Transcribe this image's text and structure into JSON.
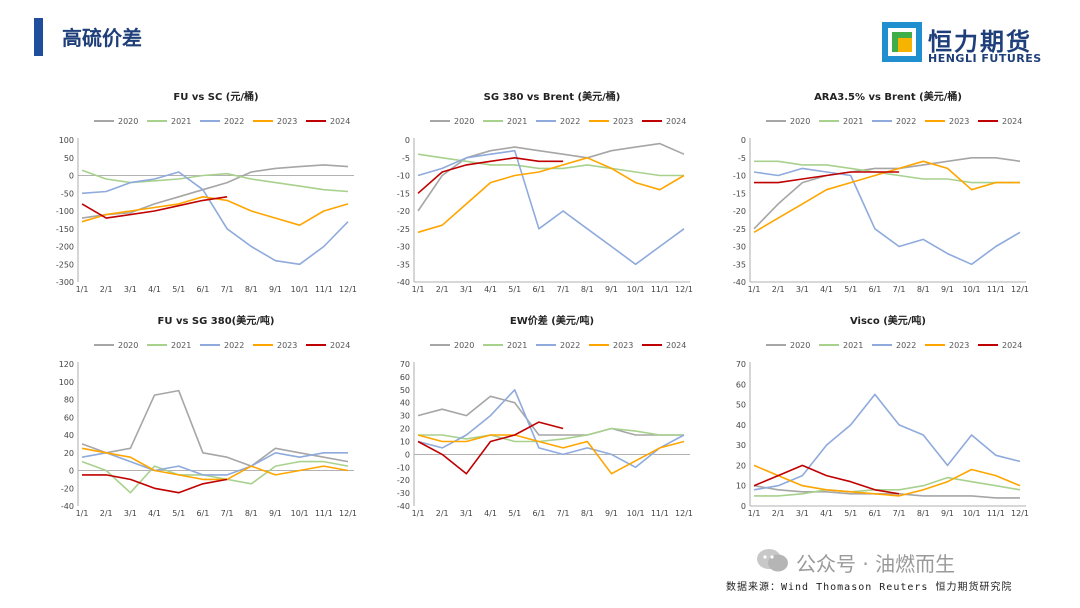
{
  "page": {
    "title": "高硫价差",
    "logo_cn": "恒力期货",
    "logo_en": "HENGLI FUTURES",
    "watermark": "公众号 · 油燃而生",
    "source": "数据来源：Wind Thomason Reuters 恒力期货研究院"
  },
  "colors": {
    "2020": "#a6a6a6",
    "2021": "#a9d18e",
    "2022": "#8faadc",
    "2023": "#ffa500",
    "2024": "#c00000",
    "accent": "#1f4e9c"
  },
  "chart_data": [
    {
      "type": "line",
      "title": "FU vs SC (元/桶)",
      "ylim": [
        -300,
        100
      ],
      "ystep": 50,
      "x": [
        "1/1",
        "2/1",
        "3/1",
        "4/1",
        "5/1",
        "6/1",
        "7/1",
        "8/1",
        "9/1",
        "10/1",
        "11/1",
        "12/1"
      ],
      "series": [
        {
          "name": "2020",
          "values": [
            -120,
            -110,
            -105,
            -80,
            -60,
            -40,
            -20,
            10,
            20,
            25,
            30,
            25
          ]
        },
        {
          "name": "2021",
          "values": [
            15,
            -10,
            -20,
            -15,
            -10,
            0,
            5,
            -10,
            -20,
            -30,
            -40,
            -45
          ]
        },
        {
          "name": "2022",
          "values": [
            -50,
            -45,
            -20,
            -10,
            10,
            -40,
            -150,
            -200,
            -240,
            -250,
            -200,
            -130
          ]
        },
        {
          "name": "2023",
          "values": [
            -130,
            -110,
            -100,
            -90,
            -80,
            -60,
            -70,
            -100,
            -120,
            -140,
            -100,
            -80
          ]
        },
        {
          "name": "2024",
          "values": [
            -80,
            -120,
            -110,
            -100,
            -85,
            -70,
            -60,
            null,
            null,
            null,
            null,
            null
          ]
        }
      ]
    },
    {
      "type": "line",
      "title": "SG 380 vs Brent (美元/桶)",
      "ylim": [
        -40,
        0
      ],
      "ystep": 5,
      "x": [
        "1/1",
        "2/1",
        "3/1",
        "4/1",
        "5/1",
        "6/1",
        "7/1",
        "8/1",
        "9/1",
        "10/1",
        "11/1",
        "12/1"
      ],
      "series": [
        {
          "name": "2020",
          "values": [
            -20,
            -10,
            -5,
            -3,
            -2,
            -3,
            -4,
            -5,
            -3,
            -2,
            -1,
            -4
          ]
        },
        {
          "name": "2021",
          "values": [
            -4,
            -5,
            -6,
            -7,
            -7,
            -8,
            -8,
            -7,
            -8,
            -9,
            -10,
            -10
          ]
        },
        {
          "name": "2022",
          "values": [
            -10,
            -8,
            -5,
            -4,
            -3,
            -25,
            -20,
            -25,
            -30,
            -35,
            -30,
            -25
          ]
        },
        {
          "name": "2023",
          "values": [
            -26,
            -24,
            -18,
            -12,
            -10,
            -9,
            -7,
            -5,
            -8,
            -12,
            -14,
            -10
          ]
        },
        {
          "name": "2024",
          "values": [
            -15,
            -9,
            -7,
            -6,
            -5,
            -6,
            -6,
            null,
            null,
            null,
            null,
            null
          ]
        }
      ]
    },
    {
      "type": "line",
      "title": "ARA3.5% vs Brent (美元/桶)",
      "ylim": [
        -40,
        0
      ],
      "ystep": 5,
      "x": [
        "1/1",
        "2/1",
        "3/1",
        "4/1",
        "5/1",
        "6/1",
        "7/1",
        "8/1",
        "9/1",
        "10/1",
        "11/1",
        "12/1"
      ],
      "series": [
        {
          "name": "2020",
          "values": [
            -25,
            -18,
            -12,
            -10,
            -9,
            -8,
            -8,
            -7,
            -6,
            -5,
            -5,
            -6
          ]
        },
        {
          "name": "2021",
          "values": [
            -6,
            -6,
            -7,
            -7,
            -8,
            -9,
            -10,
            -11,
            -11,
            -12,
            -12,
            -12
          ]
        },
        {
          "name": "2022",
          "values": [
            -9,
            -10,
            -8,
            -9,
            -10,
            -25,
            -30,
            -28,
            -32,
            -35,
            -30,
            -26
          ]
        },
        {
          "name": "2023",
          "values": [
            -26,
            -22,
            -18,
            -14,
            -12,
            -10,
            -8,
            -6,
            -8,
            -14,
            -12,
            -12
          ]
        },
        {
          "name": "2024",
          "values": [
            -12,
            -12,
            -11,
            -10,
            -9,
            -9,
            -9,
            null,
            null,
            null,
            null,
            null
          ]
        }
      ]
    },
    {
      "type": "line",
      "title": "FU vs SG 380(美元/吨)",
      "ylim": [
        -40,
        120
      ],
      "ystep": 20,
      "x": [
        "1/1",
        "2/1",
        "3/1",
        "4/1",
        "5/1",
        "6/1",
        "7/1",
        "8/1",
        "9/1",
        "10/1",
        "11/1",
        "12/1"
      ],
      "series": [
        {
          "name": "2020",
          "values": [
            30,
            20,
            25,
            85,
            90,
            20,
            15,
            5,
            25,
            20,
            15,
            10
          ]
        },
        {
          "name": "2021",
          "values": [
            10,
            0,
            -25,
            5,
            -5,
            -5,
            -10,
            -15,
            5,
            10,
            10,
            5
          ]
        },
        {
          "name": "2022",
          "values": [
            15,
            20,
            10,
            0,
            5,
            -5,
            -5,
            5,
            20,
            15,
            20,
            20
          ]
        },
        {
          "name": "2023",
          "values": [
            25,
            20,
            15,
            0,
            -5,
            -10,
            -10,
            5,
            -5,
            0,
            5,
            0
          ]
        },
        {
          "name": "2024",
          "values": [
            -5,
            -5,
            -10,
            -20,
            -25,
            -15,
            -10,
            null,
            null,
            null,
            null,
            null
          ]
        }
      ]
    },
    {
      "type": "line",
      "title": "EW价差 (美元/吨)",
      "ylim": [
        -40,
        70
      ],
      "ystep": 10,
      "x": [
        "1/1",
        "2/1",
        "3/1",
        "4/1",
        "5/1",
        "6/1",
        "7/1",
        "8/1",
        "9/1",
        "10/1",
        "11/1",
        "12/1"
      ],
      "series": [
        {
          "name": "2020",
          "values": [
            30,
            35,
            30,
            45,
            40,
            15,
            15,
            15,
            20,
            15,
            15,
            15
          ]
        },
        {
          "name": "2021",
          "values": [
            15,
            15,
            12,
            15,
            10,
            10,
            12,
            15,
            20,
            18,
            15,
            15
          ]
        },
        {
          "name": "2022",
          "values": [
            10,
            5,
            15,
            30,
            50,
            5,
            0,
            5,
            0,
            -10,
            5,
            15
          ]
        },
        {
          "name": "2023",
          "values": [
            15,
            10,
            10,
            15,
            15,
            10,
            5,
            10,
            -15,
            -5,
            5,
            10
          ]
        },
        {
          "name": "2024",
          "values": [
            10,
            0,
            -15,
            10,
            15,
            25,
            20,
            null,
            null,
            null,
            null,
            null
          ]
        }
      ]
    },
    {
      "type": "line",
      "title": "Visco (美元/吨)",
      "ylim": [
        0,
        70
      ],
      "ystep": 10,
      "x": [
        "1/1",
        "2/1",
        "3/1",
        "4/1",
        "5/1",
        "6/1",
        "7/1",
        "8/1",
        "9/1",
        "10/1",
        "11/1",
        "12/1"
      ],
      "series": [
        {
          "name": "2020",
          "values": [
            10,
            8,
            7,
            7,
            6,
            6,
            6,
            5,
            5,
            5,
            4,
            4
          ]
        },
        {
          "name": "2021",
          "values": [
            5,
            5,
            6,
            8,
            7,
            8,
            8,
            10,
            14,
            12,
            10,
            8
          ]
        },
        {
          "name": "2022",
          "values": [
            8,
            10,
            15,
            30,
            40,
            55,
            40,
            35,
            20,
            35,
            25,
            22
          ]
        },
        {
          "name": "2023",
          "values": [
            20,
            15,
            10,
            8,
            7,
            6,
            5,
            8,
            12,
            18,
            15,
            10
          ]
        },
        {
          "name": "2024",
          "values": [
            10,
            15,
            20,
            15,
            12,
            8,
            6,
            null,
            null,
            null,
            null,
            null
          ]
        }
      ]
    }
  ]
}
